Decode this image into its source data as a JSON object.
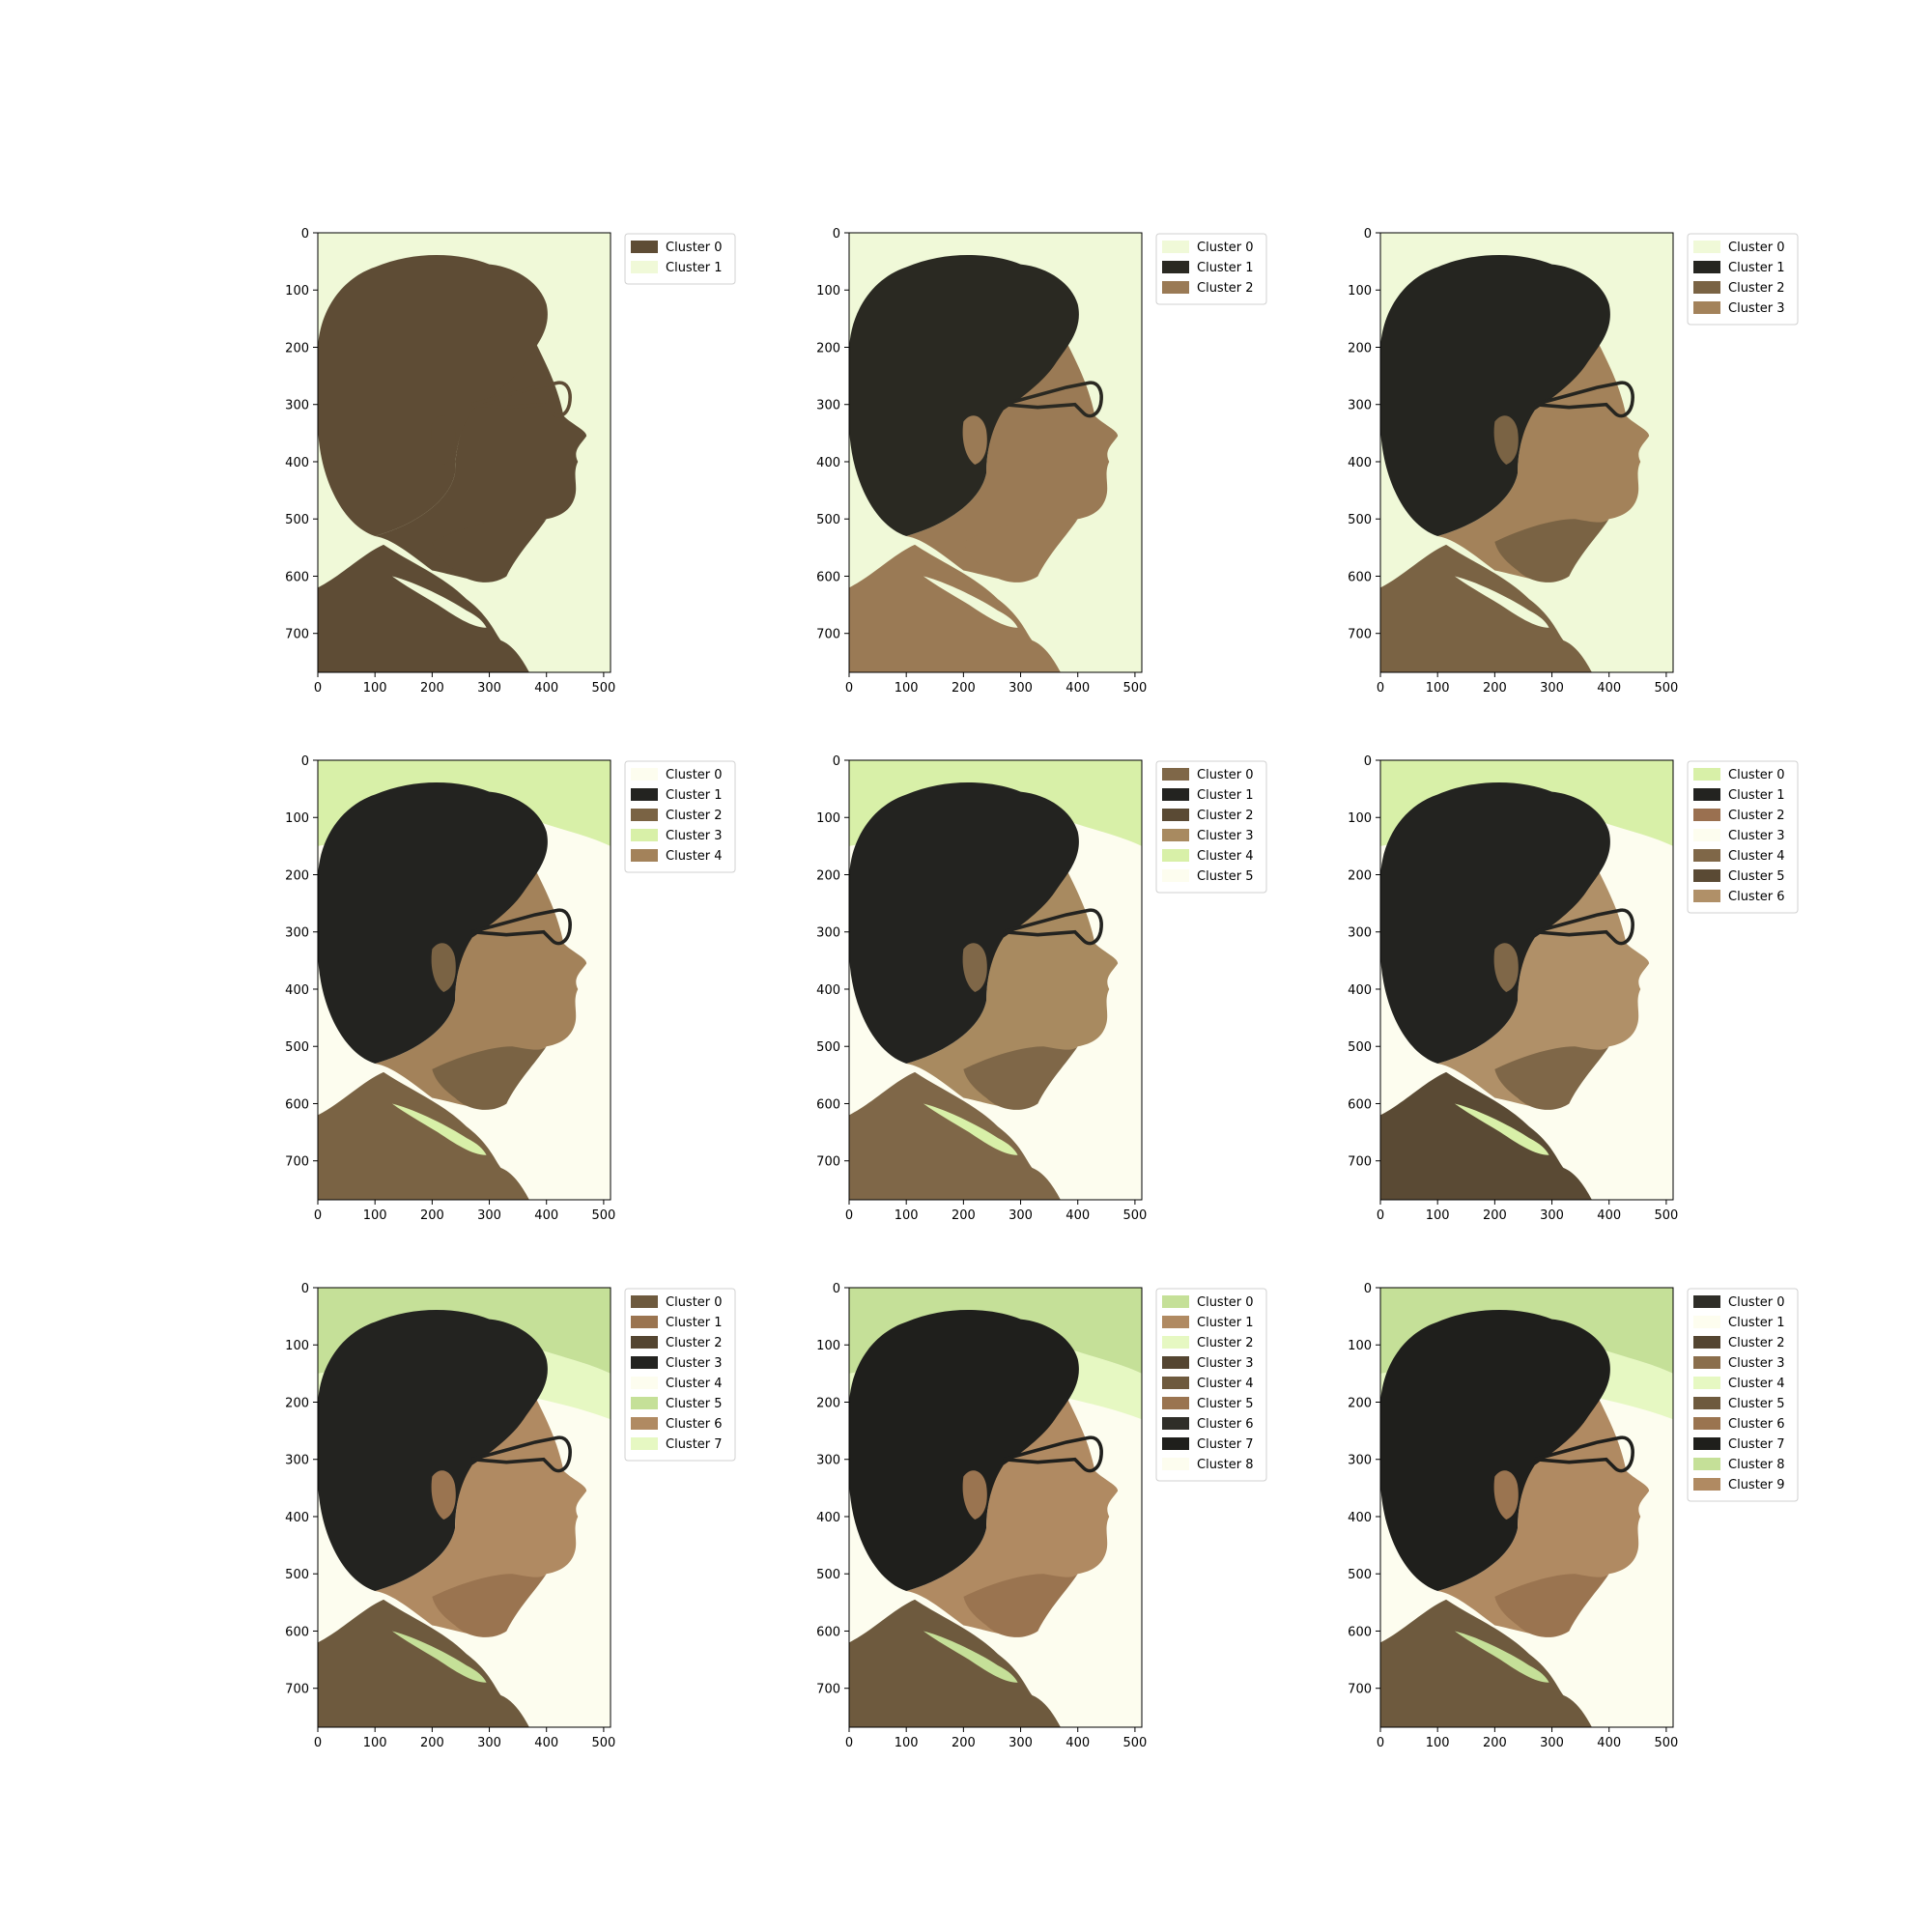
{
  "chart_data": [
    {
      "type": "image",
      "xlim": [
        0,
        512
      ],
      "ylim": [
        768,
        0
      ],
      "xticks": [
        0,
        100,
        200,
        300,
        400,
        500
      ],
      "yticks": [
        0,
        100,
        200,
        300,
        400,
        500,
        600,
        700
      ],
      "legend_position": "upper-right-outside",
      "legend": [
        {
          "label": "Cluster 0",
          "color": "#5e4c35"
        },
        {
          "label": "Cluster 1",
          "color": "#f0f9d8"
        }
      ],
      "segments": {
        "background": "#f0f9d8",
        "hair": "#5e4c35",
        "skin": "#5e4c35",
        "skin_shadow": "#5e4c35",
        "jacket": "#5e4c35",
        "collar": "#f0f9d8"
      }
    },
    {
      "type": "image",
      "xlim": [
        0,
        512
      ],
      "ylim": [
        768,
        0
      ],
      "xticks": [
        0,
        100,
        200,
        300,
        400,
        500
      ],
      "yticks": [
        0,
        100,
        200,
        300,
        400,
        500,
        600,
        700
      ],
      "legend_position": "upper-right-outside",
      "legend": [
        {
          "label": "Cluster 0",
          "color": "#f0f9d8"
        },
        {
          "label": "Cluster 1",
          "color": "#2a2922"
        },
        {
          "label": "Cluster 2",
          "color": "#9a7a55"
        }
      ],
      "segments": {
        "background": "#f0f9d8",
        "hair": "#2a2922",
        "skin": "#9a7a55",
        "skin_shadow": "#9a7a55",
        "jacket": "#9a7a55",
        "collar": "#f0f9d8"
      }
    },
    {
      "type": "image",
      "xlim": [
        0,
        512
      ],
      "ylim": [
        768,
        0
      ],
      "xticks": [
        0,
        100,
        200,
        300,
        400,
        500
      ],
      "yticks": [
        0,
        100,
        200,
        300,
        400,
        500,
        600,
        700
      ],
      "legend_position": "upper-right-outside",
      "legend": [
        {
          "label": "Cluster 0",
          "color": "#f0f9d8"
        },
        {
          "label": "Cluster 1",
          "color": "#252520"
        },
        {
          "label": "Cluster 2",
          "color": "#7a6344"
        },
        {
          "label": "Cluster 3",
          "color": "#a3825a"
        }
      ],
      "segments": {
        "background": "#f0f9d8",
        "hair": "#252520",
        "skin": "#a3825a",
        "skin_shadow": "#7a6344",
        "jacket": "#7a6344",
        "collar": "#f0f9d8"
      }
    },
    {
      "type": "image",
      "xlim": [
        0,
        512
      ],
      "ylim": [
        768,
        0
      ],
      "xticks": [
        0,
        100,
        200,
        300,
        400,
        500
      ],
      "yticks": [
        0,
        100,
        200,
        300,
        400,
        500,
        600,
        700
      ],
      "legend_position": "upper-right-outside",
      "legend": [
        {
          "label": "Cluster 0",
          "color": "#fdfdef"
        },
        {
          "label": "Cluster 1",
          "color": "#232320"
        },
        {
          "label": "Cluster 2",
          "color": "#7a6344"
        },
        {
          "label": "Cluster 3",
          "color": "#d8f0a8"
        },
        {
          "label": "Cluster 4",
          "color": "#a3825a"
        }
      ],
      "segments": {
        "background": "#fdfdef",
        "top_band": "#d8f0a8",
        "hair": "#232320",
        "skin": "#a3825a",
        "skin_shadow": "#7a6344",
        "jacket": "#7a6344",
        "collar": "#d8f0a8"
      }
    },
    {
      "type": "image",
      "xlim": [
        0,
        512
      ],
      "ylim": [
        768,
        0
      ],
      "xticks": [
        0,
        100,
        200,
        300,
        400,
        500
      ],
      "yticks": [
        0,
        100,
        200,
        300,
        400,
        500,
        600,
        700
      ],
      "legend_position": "upper-right-outside",
      "legend": [
        {
          "label": "Cluster 0",
          "color": "#7f6748"
        },
        {
          "label": "Cluster 1",
          "color": "#232320"
        },
        {
          "label": "Cluster 2",
          "color": "#5a4a34"
        },
        {
          "label": "Cluster 3",
          "color": "#a88a60"
        },
        {
          "label": "Cluster 4",
          "color": "#d8f0a8"
        },
        {
          "label": "Cluster 5",
          "color": "#fdfdef"
        }
      ],
      "segments": {
        "background": "#fdfdef",
        "top_band": "#d8f0a8",
        "hair": "#232320",
        "skin": "#a88a60",
        "skin_shadow": "#7f6748",
        "jacket": "#7f6748",
        "collar": "#d8f0a8"
      }
    },
    {
      "type": "image",
      "xlim": [
        0,
        512
      ],
      "ylim": [
        768,
        0
      ],
      "xticks": [
        0,
        100,
        200,
        300,
        400,
        500
      ],
      "yticks": [
        0,
        100,
        200,
        300,
        400,
        500,
        600,
        700
      ],
      "legend_position": "upper-right-outside",
      "legend": [
        {
          "label": "Cluster 0",
          "color": "#d8f0a8"
        },
        {
          "label": "Cluster 1",
          "color": "#232320"
        },
        {
          "label": "Cluster 2",
          "color": "#9a7050"
        },
        {
          "label": "Cluster 3",
          "color": "#fdfdef"
        },
        {
          "label": "Cluster 4",
          "color": "#7f6748"
        },
        {
          "label": "Cluster 5",
          "color": "#5a4a34"
        },
        {
          "label": "Cluster 6",
          "color": "#b09068"
        }
      ],
      "segments": {
        "background": "#fdfdef",
        "top_band": "#d8f0a8",
        "hair": "#232320",
        "skin": "#b09068",
        "skin_shadow": "#7f6748",
        "jacket": "#5a4a34",
        "collar": "#d8f0a8"
      }
    },
    {
      "type": "image",
      "xlim": [
        0,
        512
      ],
      "ylim": [
        768,
        0
      ],
      "xticks": [
        0,
        100,
        200,
        300,
        400,
        500
      ],
      "yticks": [
        0,
        100,
        200,
        300,
        400,
        500,
        600,
        700
      ],
      "legend_position": "upper-right-outside",
      "legend": [
        {
          "label": "Cluster 0",
          "color": "#6e5a3e"
        },
        {
          "label": "Cluster 1",
          "color": "#9a7450"
        },
        {
          "label": "Cluster 2",
          "color": "#544531"
        },
        {
          "label": "Cluster 3",
          "color": "#232320"
        },
        {
          "label": "Cluster 4",
          "color": "#fdfdef"
        },
        {
          "label": "Cluster 5",
          "color": "#c5e098"
        },
        {
          "label": "Cluster 6",
          "color": "#b08a62"
        },
        {
          "label": "Cluster 7",
          "color": "#e6f8c2"
        }
      ],
      "segments": {
        "background": "#fdfdef",
        "top_band": "#c5e098",
        "band2": "#e6f8c2",
        "hair": "#232320",
        "skin": "#b08a62",
        "skin_shadow": "#9a7450",
        "jacket": "#6e5a3e",
        "collar": "#c5e098"
      }
    },
    {
      "type": "image",
      "xlim": [
        0,
        512
      ],
      "ylim": [
        768,
        0
      ],
      "xticks": [
        0,
        100,
        200,
        300,
        400,
        500
      ],
      "yticks": [
        0,
        100,
        200,
        300,
        400,
        500,
        600,
        700
      ],
      "legend_position": "upper-right-outside",
      "legend": [
        {
          "label": "Cluster 0",
          "color": "#c5e098"
        },
        {
          "label": "Cluster 1",
          "color": "#b08a62"
        },
        {
          "label": "Cluster 2",
          "color": "#e6f8c2"
        },
        {
          "label": "Cluster 3",
          "color": "#544531"
        },
        {
          "label": "Cluster 4",
          "color": "#6e5a3e"
        },
        {
          "label": "Cluster 5",
          "color": "#9a7450"
        },
        {
          "label": "Cluster 6",
          "color": "#2f2e28"
        },
        {
          "label": "Cluster 7",
          "color": "#1f1f1c"
        },
        {
          "label": "Cluster 8",
          "color": "#fdfdef"
        }
      ],
      "segments": {
        "background": "#fdfdef",
        "top_band": "#c5e098",
        "band2": "#e6f8c2",
        "hair": "#1f1f1c",
        "skin": "#b08a62",
        "skin_shadow": "#9a7450",
        "jacket": "#6e5a3e",
        "collar": "#c5e098"
      }
    },
    {
      "type": "image",
      "xlim": [
        0,
        512
      ],
      "ylim": [
        768,
        0
      ],
      "xticks": [
        0,
        100,
        200,
        300,
        400,
        500
      ],
      "yticks": [
        0,
        100,
        200,
        300,
        400,
        500,
        600,
        700
      ],
      "legend_position": "upper-right-outside",
      "legend": [
        {
          "label": "Cluster 0",
          "color": "#2f2e28"
        },
        {
          "label": "Cluster 1",
          "color": "#fdfdef"
        },
        {
          "label": "Cluster 2",
          "color": "#544531"
        },
        {
          "label": "Cluster 3",
          "color": "#8a6e4c"
        },
        {
          "label": "Cluster 4",
          "color": "#e6f8c2"
        },
        {
          "label": "Cluster 5",
          "color": "#6e5a3e"
        },
        {
          "label": "Cluster 6",
          "color": "#9a7450"
        },
        {
          "label": "Cluster 7",
          "color": "#1f1f1c"
        },
        {
          "label": "Cluster 8",
          "color": "#c5e098"
        },
        {
          "label": "Cluster 9",
          "color": "#b08a62"
        }
      ],
      "segments": {
        "background": "#fdfdef",
        "top_band": "#c5e098",
        "band2": "#e6f8c2",
        "hair": "#1f1f1c",
        "skin": "#b08a62",
        "skin_shadow": "#9a7450",
        "jacket": "#6e5a3e",
        "collar": "#c5e098"
      }
    }
  ]
}
